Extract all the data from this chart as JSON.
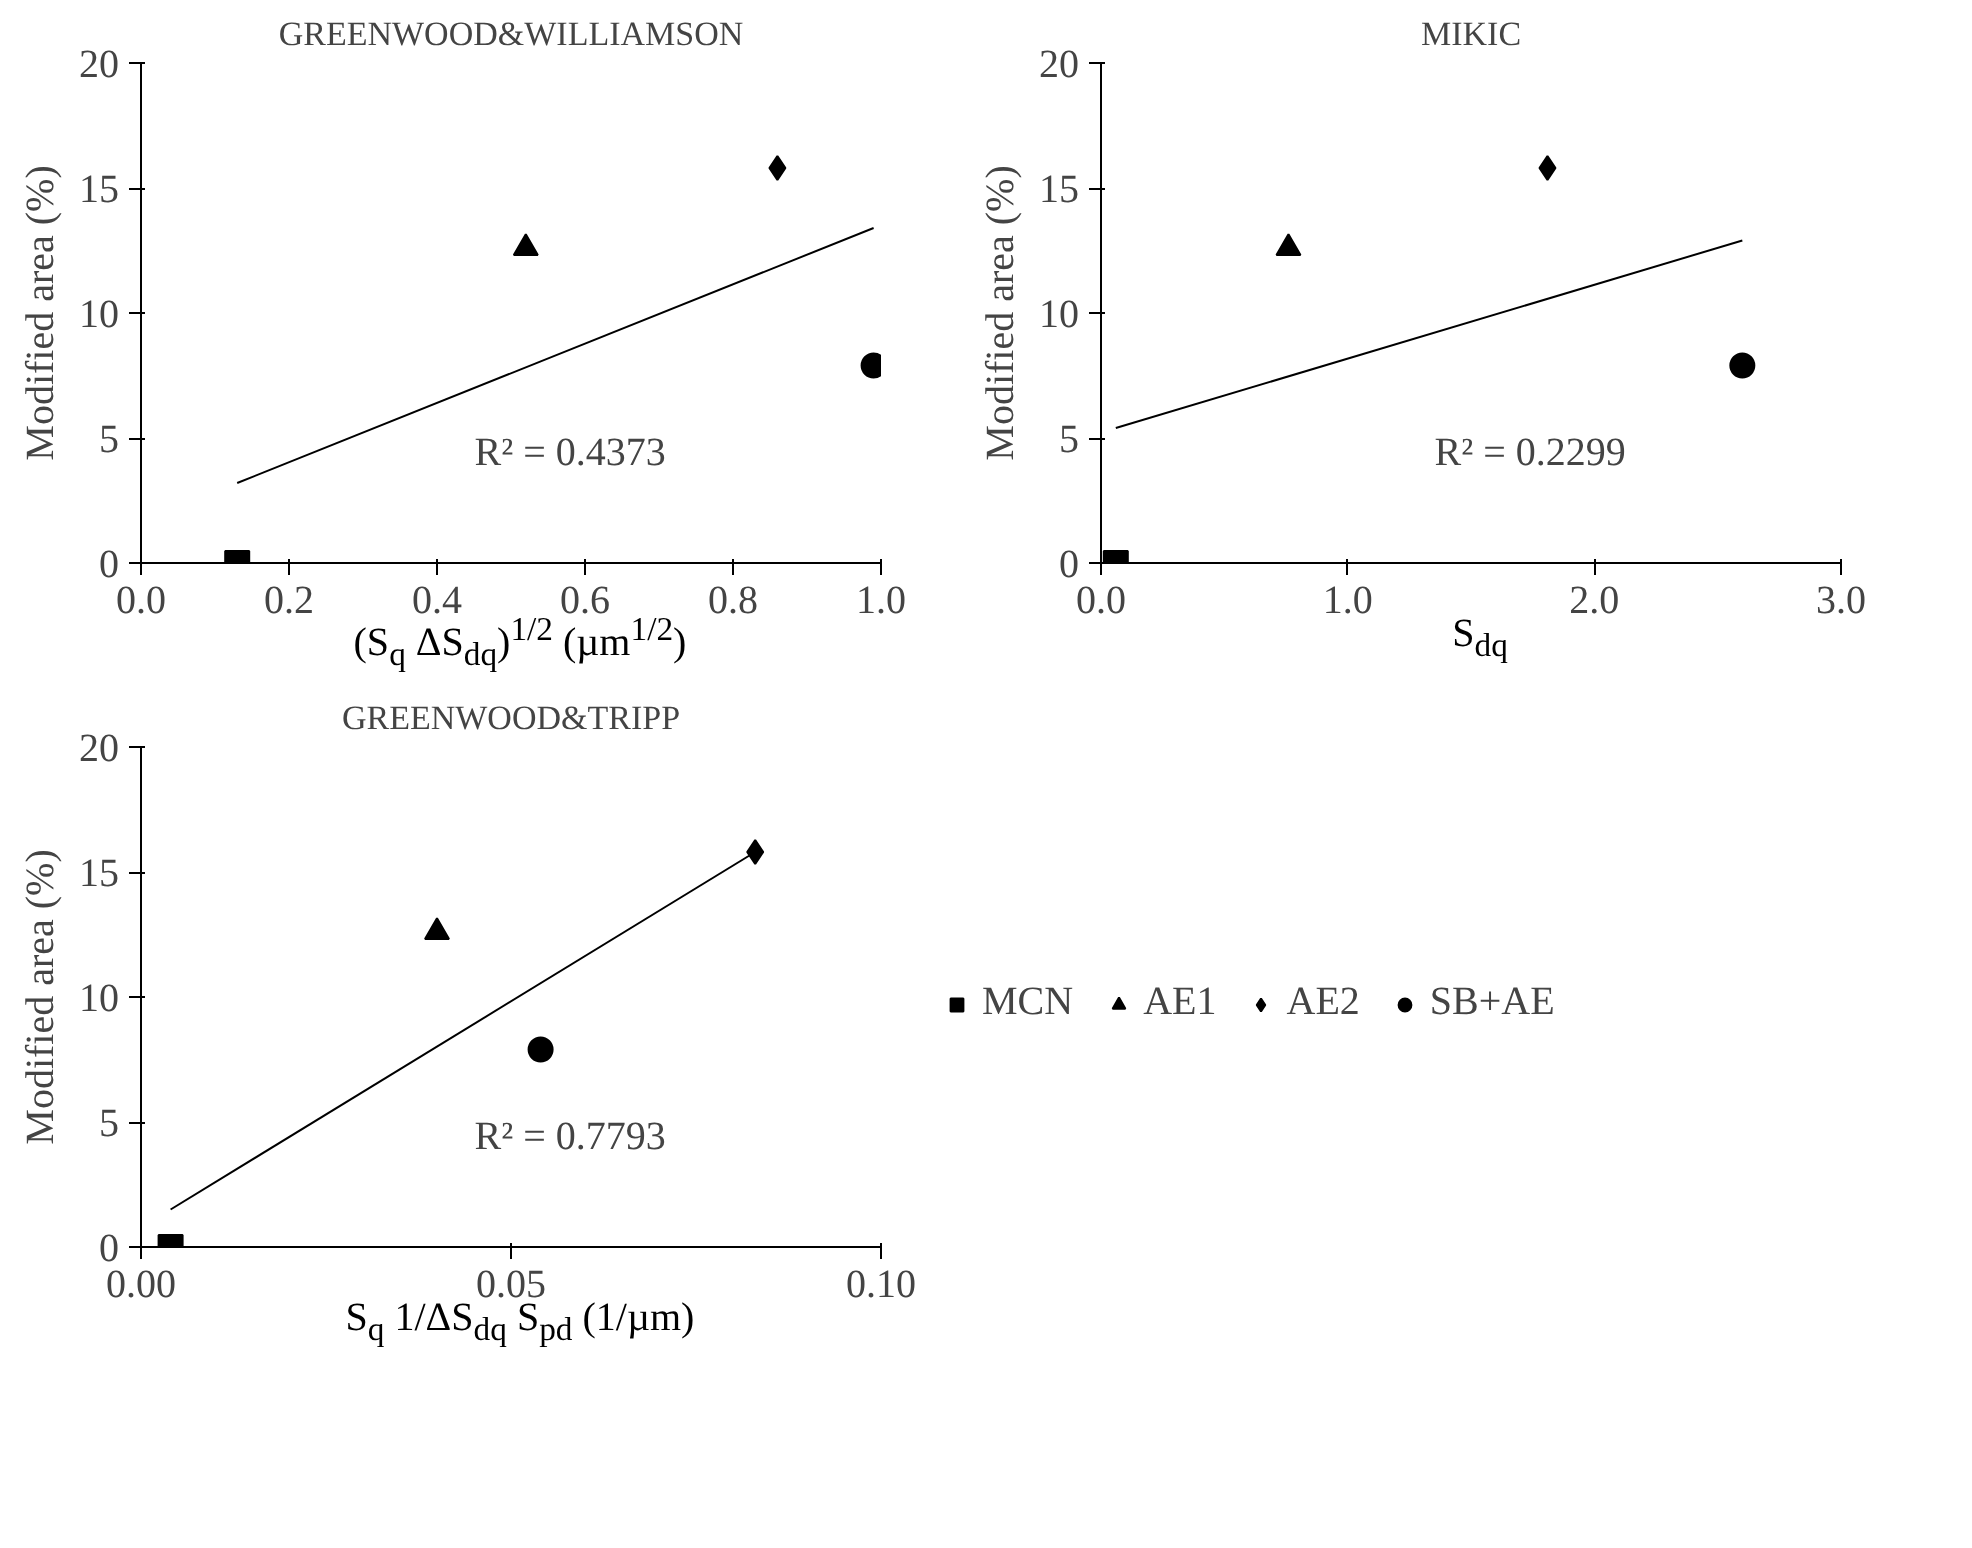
{
  "chart_data": [
    {
      "type": "scatter",
      "title": "GREENWOOD&WILLIAMSON",
      "xlabel": "(S$_{q}$ ΔS$_{dq}$)$^{1/2}$ (µm$^{1/2}$)",
      "ylabel": "Modified area (%)",
      "xlim": [
        0,
        1
      ],
      "xticks": [
        {
          "value": 0,
          "label": "0.0"
        },
        {
          "value": 0.2,
          "label": "0.2"
        },
        {
          "value": 0.4,
          "label": "0.4"
        },
        {
          "value": 0.6,
          "label": "0.6"
        },
        {
          "value": 0.8,
          "label": "0.8"
        },
        {
          "value": 1,
          "label": "1.0"
        }
      ],
      "ylim": [
        0,
        20
      ],
      "yticks": [
        0,
        5,
        10,
        15,
        20
      ],
      "grid": false,
      "legend": false,
      "series": [
        {
          "color": "#000000",
          "marker": "square",
          "x": [
            0.13
          ],
          "values": [
            0
          ]
        },
        {
          "color": "#000000",
          "marker": "triangle",
          "x": [
            0.52
          ],
          "values": [
            12.6
          ]
        },
        {
          "color": "#000000",
          "marker": "diamond",
          "x": [
            0.86
          ],
          "values": [
            15.8
          ]
        },
        {
          "color": "#000000",
          "marker": "circle",
          "x": [
            0.99
          ],
          "values": [
            7.9
          ]
        },
        {
          "type": "line",
          "color": "#000000",
          "marker": "none",
          "x": [
            0.13,
            0.99
          ],
          "values": [
            3.2,
            13.4
          ]
        }
      ],
      "annotations": [
        "R² = 0.4373"
      ]
    },
    {
      "type": "scatter",
      "title": "MIKIC",
      "xlabel": "S$_{dq}$",
      "ylabel": "Modified area (%)",
      "xlim": [
        0,
        3
      ],
      "xticks": [
        {
          "value": 0,
          "label": "0.0"
        },
        {
          "value": 1,
          "label": "1.0"
        },
        {
          "value": 2,
          "label": "2.0"
        },
        {
          "value": 3,
          "label": "3.0"
        }
      ],
      "ylim": [
        0,
        20
      ],
      "yticks": [
        0,
        5,
        10,
        15,
        20
      ],
      "grid": false,
      "legend": false,
      "series": [
        {
          "color": "#000000",
          "marker": "square",
          "x": [
            0.06
          ],
          "values": [
            0
          ]
        },
        {
          "color": "#000000",
          "marker": "triangle",
          "x": [
            0.76
          ],
          "values": [
            12.6
          ]
        },
        {
          "color": "#000000",
          "marker": "diamond",
          "x": [
            1.81
          ],
          "values": [
            15.8
          ]
        },
        {
          "color": "#000000",
          "marker": "circle",
          "x": [
            2.6
          ],
          "values": [
            7.9
          ]
        },
        {
          "type": "line",
          "color": "#000000",
          "marker": "none",
          "x": [
            0.06,
            2.6
          ],
          "values": [
            5.4,
            12.9
          ]
        }
      ],
      "annotations": [
        "R² = 0.2299"
      ]
    },
    {
      "type": "scatter",
      "title": "GREENWOOD&TRIPP",
      "xlabel": "S$_{q}$ 1/ΔS$_{dq}$ S$_{pd}$ (1/µm)",
      "ylabel": "Modified area (%)",
      "xlim": [
        0,
        0.1
      ],
      "xticks": [
        {
          "value": 0,
          "label": "0.00"
        },
        {
          "value": 0.05,
          "label": "0.05"
        },
        {
          "value": 0.1,
          "label": "0.10"
        }
      ],
      "ylim": [
        0,
        20
      ],
      "yticks": [
        0,
        5,
        10,
        15,
        20
      ],
      "grid": false,
      "legend": "right",
      "series": [
        {
          "name": "MCN",
          "color": "#000000",
          "marker": "square",
          "x": [
            0.004
          ],
          "values": [
            0
          ]
        },
        {
          "name": "AE1",
          "color": "#000000",
          "marker": "triangle",
          "x": [
            0.04
          ],
          "values": [
            12.6
          ]
        },
        {
          "name": "AE2",
          "color": "#000000",
          "marker": "diamond",
          "x": [
            0.083
          ],
          "values": [
            15.8
          ]
        },
        {
          "name": "SB+AE",
          "color": "#000000",
          "marker": "circle",
          "x": [
            0.054
          ],
          "values": [
            7.9
          ]
        },
        {
          "type": "line",
          "color": "#000000",
          "marker": "none",
          "x": [
            0.004,
            0.083
          ],
          "values": [
            1.5,
            15.8
          ]
        }
      ],
      "annotations": [
        "R² = 0.7793"
      ]
    }
  ]
}
